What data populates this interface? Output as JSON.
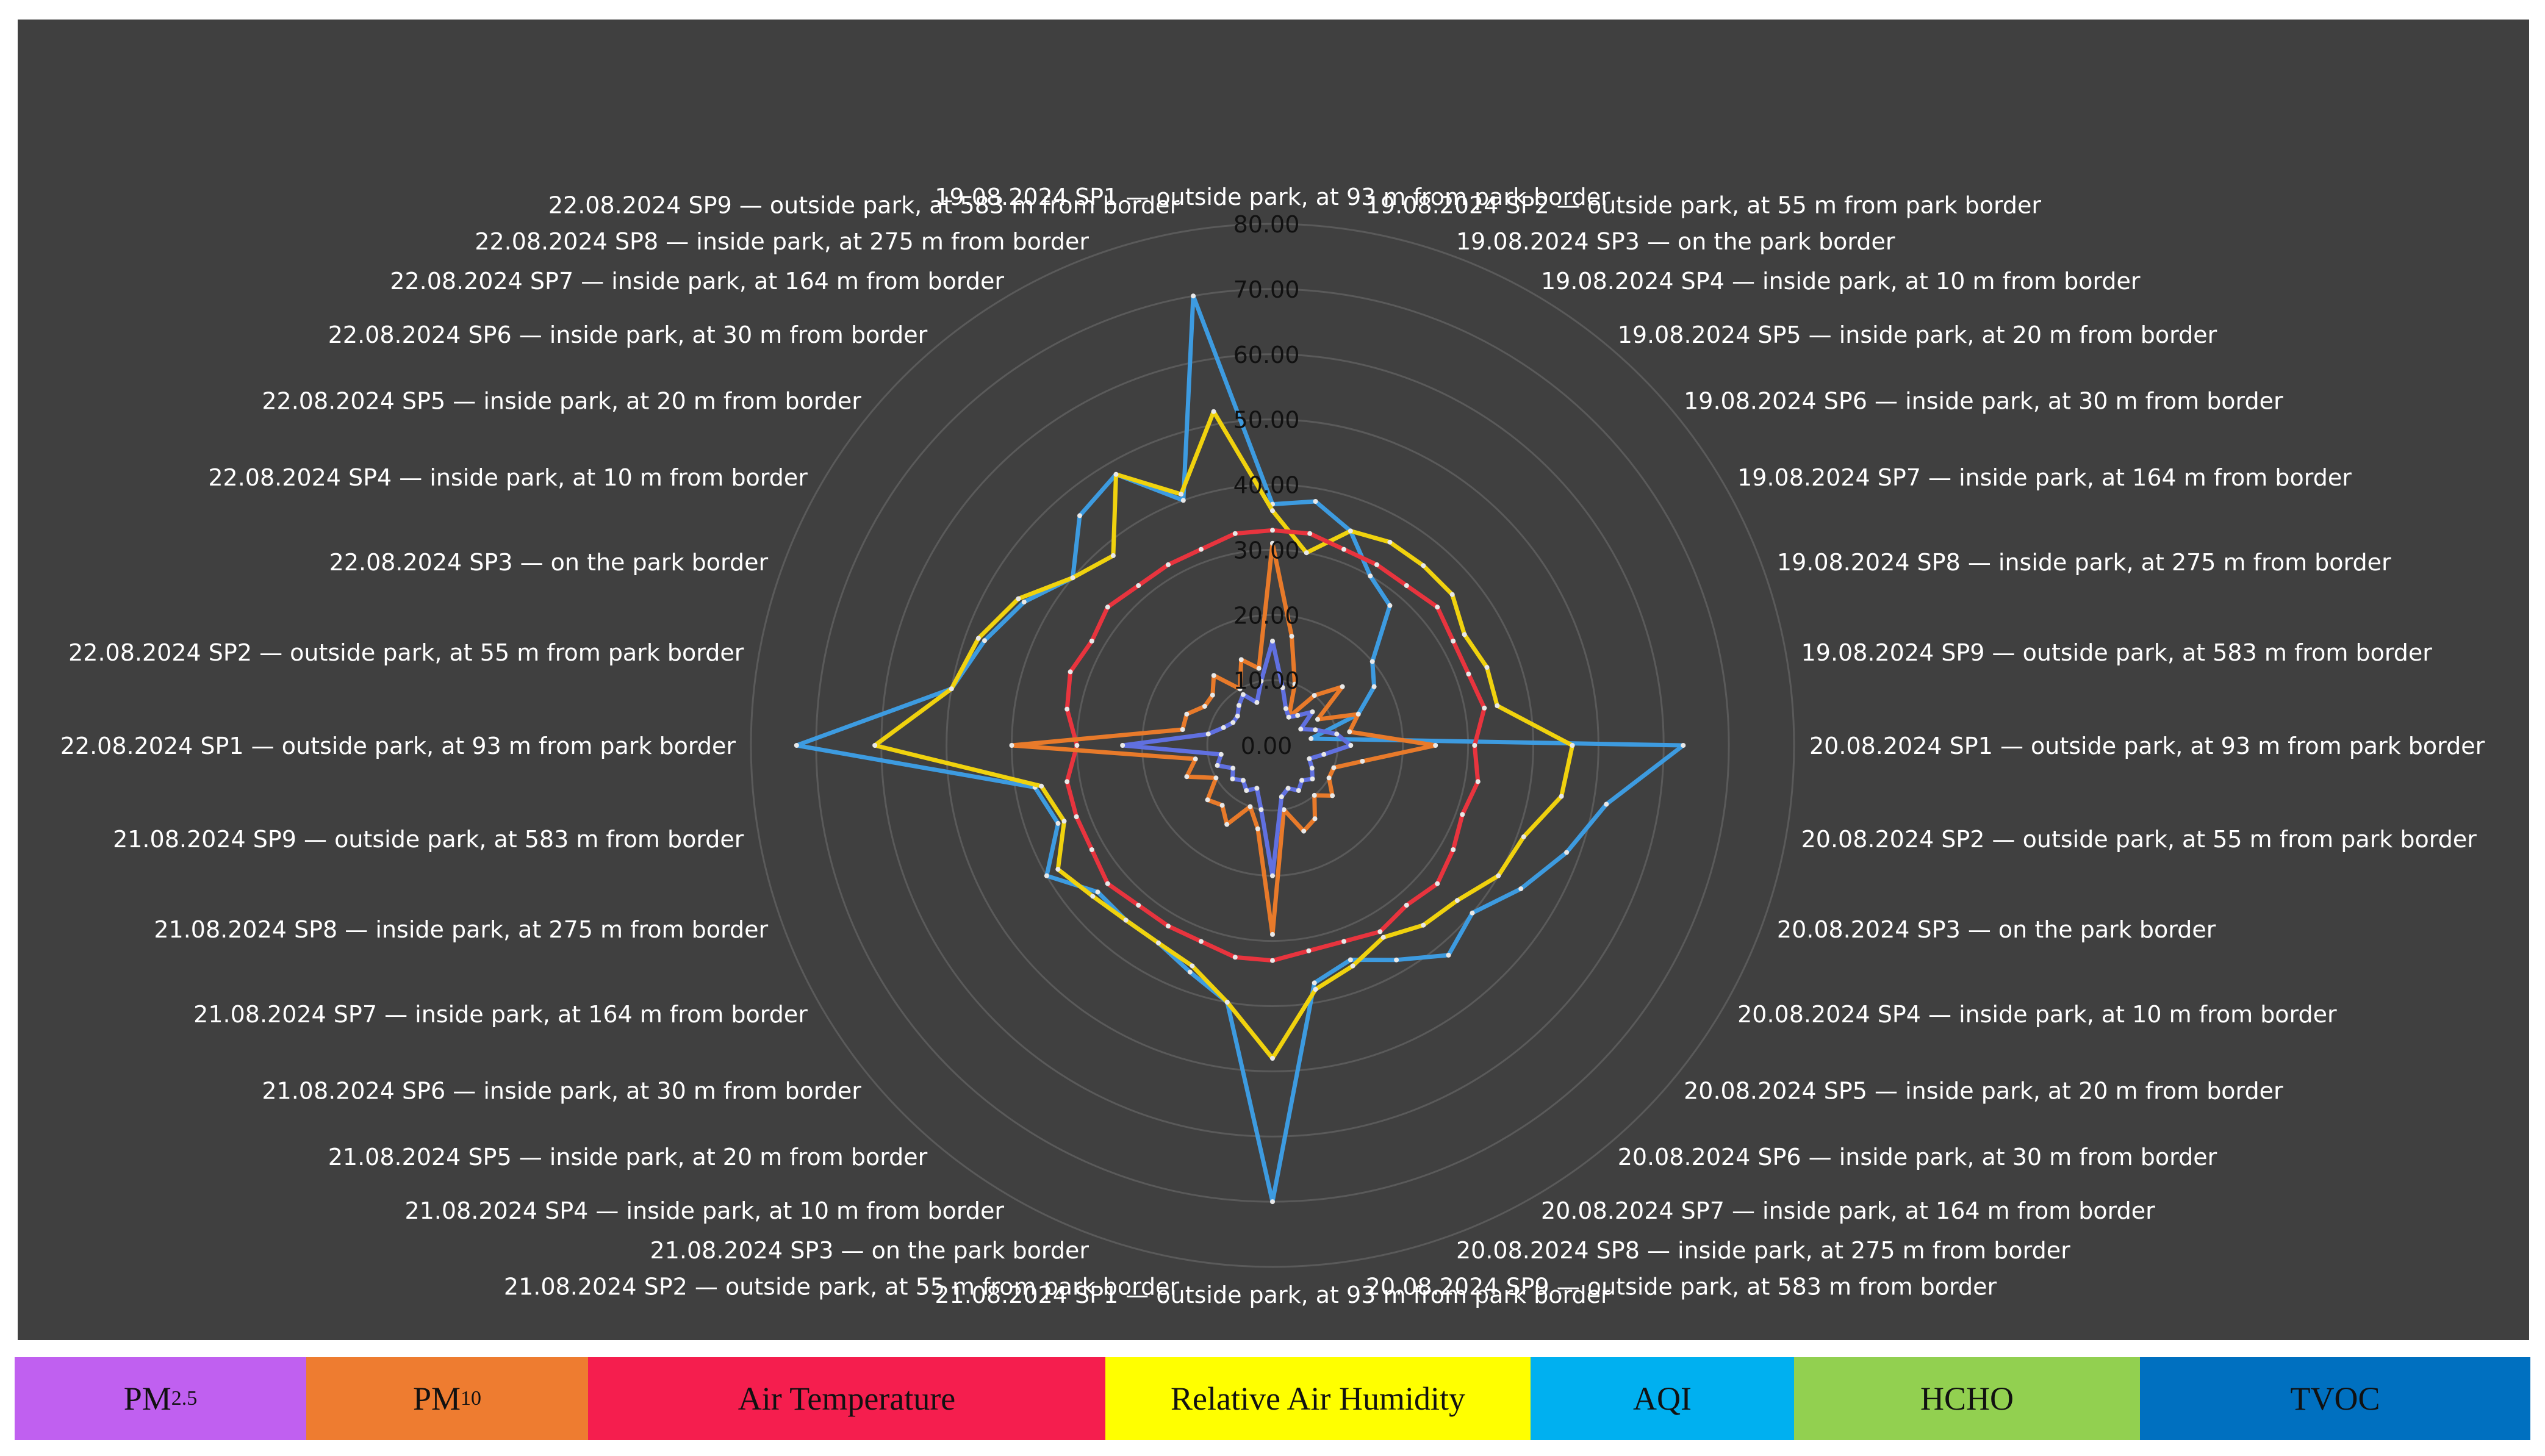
{
  "chart_data": {
    "type": "radar",
    "axis_ticks": [
      "0.00",
      "10.00",
      "20.00",
      "30.00",
      "40.00",
      "50.00",
      "60.00",
      "70.00",
      "80.00"
    ],
    "rmax": 80,
    "categories": [
      "19.08.2024 SP1 — outside park, at 93 m from park border",
      "19.08.2024 SP2 — outside park, at 55 m from park border",
      "19.08.2024 SP3 — on the park border",
      "19.08.2024 SP4 — inside park, at 10 m from border",
      "19.08.2024 SP5 — inside park, at 20 m from border",
      "19.08.2024 SP6 — inside park, at 30 m from border",
      "19.08.2024 SP7 — inside park, at 164 m from border",
      "19.08.2024 SP8 — inside park, at 275 m from border",
      "19.08.2024 SP9 — outside park, at 583 m from border",
      "20.08.2024 SP1 — outside park, at 93 m from park border",
      "20.08.2024 SP2 — outside park, at 55 m from park border",
      "20.08.2024 SP3 — on the park border",
      "20.08.2024 SP4 — inside park, at 10 m from border",
      "20.08.2024 SP5 — inside park, at 20 m from border",
      "20.08.2024 SP6 — inside park, at 30 m from border",
      "20.08.2024 SP7 — inside park, at 164 m from border",
      "20.08.2024 SP8 — inside park, at 275 m from border",
      "20.08.2024 SP9 — outside park, at 583 m from border",
      "21.08.2024 SP1 — outside park, at 93 m from park border",
      "21.08.2024 SP2 — outside park, at 55 m from park border",
      "21.08.2024 SP3 — on the park border",
      "21.08.2024 SP4 — inside park, at 10 m from border",
      "21.08.2024 SP5 — inside park, at 20 m from border",
      "21.08.2024 SP6 — inside park, at 30 m from border",
      "21.08.2024 SP7 — inside park, at 164 m from border",
      "21.08.2024 SP8 — inside park, at 275 m from border",
      "21.08.2024 SP9 — outside park, at 583 m from border",
      "22.08.2024 SP1 — outside park, at 93 m from park border",
      "22.08.2024 SP2 — outside park, at 55 m from park border",
      "22.08.2024 SP3 — on the park border",
      "22.08.2024 SP4 — inside park, at 10 m from border",
      "22.08.2024 SP5 — inside park, at 20 m from border",
      "22.08.2024 SP6 — inside park, at 30 m from border",
      "22.08.2024 SP7 — inside park, at 164 m from border",
      "22.08.2024 SP8 — inside park, at 275 m from border",
      "22.08.2024 SP9 — outside park, at 583 m from border"
    ],
    "series": [
      {
        "name": "AQI",
        "color": "#3d9be0",
        "values": [
          37,
          38,
          35,
          30,
          28,
          20,
          18,
          14,
          6,
          63,
          52,
          48,
          44,
          40,
          42,
          38,
          35,
          37,
          70,
          40,
          37,
          35,
          35,
          35,
          40,
          35,
          37,
          73,
          50,
          47,
          44,
          40,
          46,
          48,
          40,
          70
        ]
      },
      {
        "name": "Relative Air Humidity",
        "color": "#f0d20e",
        "values": [
          36,
          30,
          35,
          36,
          36,
          36,
          34,
          35,
          35,
          46,
          45,
          41,
          40,
          37,
          36,
          34,
          36,
          38,
          48,
          40,
          36,
          35,
          35,
          36,
          38,
          34,
          36,
          61,
          50,
          48,
          45,
          40,
          38,
          48,
          41,
          52
        ]
      },
      {
        "name": "Air Temperature",
        "color": "#e8343e",
        "values": [
          33,
          33,
          32,
          32,
          32,
          33,
          32,
          32,
          33,
          31,
          32,
          31,
          32,
          33,
          32,
          33,
          32,
          32,
          33,
          33,
          32,
          32,
          32,
          33,
          32,
          32,
          32,
          30,
          32,
          33,
          32,
          33,
          32,
          32,
          32,
          33
        ]
      },
      {
        "name": "PM10",
        "color": "#e87a2a",
        "values": [
          31,
          17,
          10,
          5,
          10,
          14,
          8,
          14,
          12,
          25,
          14,
          10,
          10,
          12,
          10,
          13,
          14,
          10,
          29,
          13,
          10,
          14,
          12,
          13,
          10,
          14,
          12,
          40,
          14,
          14,
          12,
          12,
          14,
          10,
          14,
          12
        ]
      },
      {
        "name": "TVOC",
        "color": "#6070e0",
        "values": [
          16,
          9,
          6,
          5,
          6,
          8,
          5,
          7,
          10,
          12,
          8,
          6,
          7,
          8,
          7,
          8,
          7,
          8,
          20,
          10,
          7,
          8,
          7,
          8,
          7,
          9,
          8,
          23,
          10,
          8,
          7,
          7,
          8,
          9,
          7,
          10
        ]
      }
    ],
    "legend": [
      {
        "label": "PM",
        "sub": "2.5",
        "color": "#c060f0"
      },
      {
        "label": "PM",
        "sub": "10",
        "color": "#ee7c30"
      },
      {
        "label": "Air Temperature",
        "sub": "",
        "color": "#f51e4e"
      },
      {
        "label": "Relative Air Humidity",
        "sub": "",
        "color": "#ffff00"
      },
      {
        "label": "AQI",
        "sub": "",
        "color": "#00b0f0"
      },
      {
        "label": "HCHO",
        "sub": "",
        "color": "#92d050"
      },
      {
        "label": "TVOC",
        "sub": "",
        "color": "#0070c0"
      }
    ]
  }
}
